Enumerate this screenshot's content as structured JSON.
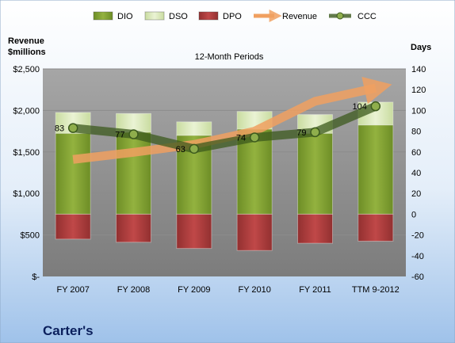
{
  "chart_data": {
    "type": "combo",
    "title": "12-Month Periods",
    "company": "Carter's",
    "y_left_label_line1": "Revenue",
    "y_left_label_line2": "$millions",
    "y_right_label": "Days",
    "categories": [
      "FY 2007",
      "FY 2008",
      "FY 2009",
      "FY 2010",
      "FY 2011",
      "TTM 9-2012"
    ],
    "y_left_ticks": [
      "$-",
      "$500",
      "$1,000",
      "$1,500",
      "$2,000",
      "$2,500"
    ],
    "y_right_ticks": [
      "-60",
      "-40",
      "-20",
      "0",
      "20",
      "40",
      "60",
      "80",
      "100",
      "120",
      "140"
    ],
    "y_left_range": [
      0,
      2500
    ],
    "y_right_range": [
      -60,
      140
    ],
    "series": [
      {
        "name": "DIO",
        "type": "bar",
        "axis": "right",
        "color": "#7a9a2e",
        "values": [
          78,
          79,
          76,
          82,
          78,
          86
        ]
      },
      {
        "name": "DSO",
        "type": "bar",
        "axis": "right",
        "color": "#d8e8b0",
        "values": [
          20,
          18,
          13,
          17,
          18,
          22
        ]
      },
      {
        "name": "DPO",
        "type": "bar",
        "axis": "right",
        "color": "#b03a3a",
        "values": [
          -24,
          -27,
          -33,
          -35,
          -28,
          -26
        ]
      },
      {
        "name": "Revenue",
        "type": "arrow-line",
        "axis": "left",
        "color": "#f0a060",
        "values": [
          1410,
          1495,
          1590,
          1750,
          2110,
          2270
        ]
      },
      {
        "name": "CCC",
        "type": "line",
        "axis": "right",
        "color": "#3c5a1e",
        "values": [
          83,
          77,
          63,
          74,
          79,
          104
        ],
        "labels": [
          "83",
          "77",
          "63",
          "74",
          "79",
          "104"
        ]
      }
    ]
  }
}
